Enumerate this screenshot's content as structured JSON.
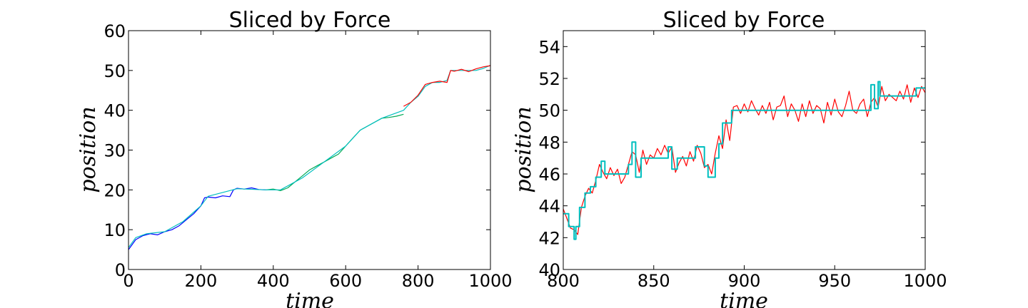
{
  "chart_data": [
    {
      "type": "line",
      "title": "Sliced by Force",
      "xlabel": "time",
      "ylabel": "position",
      "xlim": [
        0,
        1000
      ],
      "ylim": [
        0,
        60
      ],
      "xticks": [
        0,
        200,
        400,
        600,
        800,
        1000
      ],
      "yticks": [
        0,
        10,
        20,
        30,
        40,
        50,
        60
      ],
      "grid": false,
      "series": [
        {
          "color": "#0000ff",
          "x": [
            0,
            20,
            40,
            60,
            80,
            100,
            120,
            140,
            160,
            180,
            200,
            210,
            220,
            240,
            260,
            280,
            290,
            300,
            320,
            340,
            360,
            380
          ],
          "y": [
            5,
            7.5,
            8.5,
            9,
            8.7,
            9.5,
            10,
            11,
            12.5,
            14,
            16,
            18,
            18.2,
            18,
            18.5,
            18.3,
            20,
            20.4,
            20.2,
            20.5,
            20.1,
            20
          ]
        },
        {
          "color": "#00aa55",
          "x": [
            380,
            400,
            420,
            440,
            460,
            480,
            500,
            520,
            540,
            560,
            580,
            600,
            620,
            640,
            660,
            680,
            700,
            720,
            740,
            760
          ],
          "y": [
            20,
            20.2,
            19.8,
            20.5,
            22,
            23.5,
            25,
            26,
            27,
            28,
            29,
            31,
            33,
            35,
            36,
            37,
            38,
            38.2,
            38.5,
            39
          ]
        },
        {
          "color": "#00bfbf",
          "x": [
            0,
            20,
            50,
            100,
            150,
            200,
            220,
            300,
            380,
            420,
            480,
            540,
            600,
            640,
            700,
            760,
            780,
            800,
            820,
            840,
            860,
            880,
            890,
            900,
            920,
            940,
            960,
            980,
            1000
          ],
          "y": [
            5.5,
            8,
            9,
            9.5,
            12,
            16,
            18.4,
            20.3,
            20,
            20,
            23,
            27,
            31,
            35,
            38,
            40,
            42,
            43.5,
            46,
            47,
            47,
            47.5,
            50,
            50,
            50,
            50,
            50,
            50.5,
            51.3
          ]
        },
        {
          "color": "#ff0000",
          "x": [
            760,
            780,
            800,
            820,
            840,
            860,
            880,
            890,
            900,
            920,
            940,
            960,
            980,
            1000
          ],
          "y": [
            41,
            42,
            43.8,
            46.5,
            47,
            47.3,
            47,
            50,
            49.8,
            50.3,
            49.7,
            50.4,
            50.9,
            51.2
          ]
        }
      ]
    },
    {
      "type": "line",
      "title": "Sliced by Force",
      "xlabel": "time",
      "ylabel": "position",
      "xlim": [
        800,
        1000
      ],
      "ylim": [
        40,
        55
      ],
      "xticks": [
        800,
        850,
        900,
        950,
        1000
      ],
      "yticks": [
        40,
        42,
        44,
        46,
        48,
        50,
        52,
        54
      ],
      "grid": false,
      "series": [
        {
          "color": "#ff0000",
          "x": [
            800,
            802,
            804,
            806,
            808,
            810,
            812,
            814,
            816,
            818,
            820,
            822,
            824,
            826,
            828,
            830,
            832,
            834,
            836,
            838,
            840,
            842,
            844,
            846,
            848,
            850,
            852,
            854,
            856,
            858,
            860,
            862,
            864,
            866,
            868,
            870,
            872,
            874,
            876,
            878,
            880,
            882,
            884,
            886,
            888,
            890,
            892,
            894,
            896,
            898,
            900,
            902,
            904,
            906,
            908,
            910,
            912,
            914,
            916,
            918,
            920,
            922,
            924,
            926,
            928,
            930,
            932,
            934,
            936,
            938,
            940,
            942,
            944,
            946,
            948,
            950,
            952,
            954,
            956,
            958,
            960,
            962,
            964,
            966,
            968,
            970,
            972,
            974,
            976,
            978,
            980,
            982,
            984,
            986,
            988,
            990,
            992,
            994,
            996,
            998,
            1000
          ],
          "y": [
            43.8,
            43.2,
            42.6,
            42.5,
            42.2,
            43.9,
            44.6,
            45.1,
            44.8,
            45.6,
            46.6,
            46.1,
            45.7,
            46.4,
            45.9,
            46.3,
            45.4,
            45.8,
            46.6,
            47.4,
            47.2,
            46.1,
            47.5,
            46.6,
            47.2,
            47.0,
            47.6,
            47.2,
            47.8,
            47.3,
            47.7,
            46.1,
            46.7,
            47.1,
            46.5,
            47.4,
            46.8,
            47.8,
            47.3,
            46.4,
            46.6,
            46.0,
            47.3,
            48.4,
            47.6,
            49.4,
            48.1,
            50.2,
            50.3,
            49.8,
            50.4,
            49.9,
            50.6,
            50.1,
            49.7,
            50.3,
            49.8,
            50.5,
            49.4,
            50.2,
            50.3,
            50.9,
            49.6,
            50.4,
            50.0,
            49.3,
            50.4,
            49.6,
            50.6,
            49.8,
            50.3,
            50.1,
            49.2,
            50.5,
            49.7,
            50.7,
            49.9,
            49.6,
            50.3,
            51.2,
            50.0,
            49.8,
            50.4,
            50.7,
            49.6,
            50.5,
            50.8,
            50.2,
            51.5,
            50.6,
            51.0,
            50.8,
            50.6,
            51.2,
            50.7,
            51.6,
            50.5,
            51.4,
            50.8,
            51.5,
            51.1
          ]
        },
        {
          "color": "#00bfbf",
          "x": [
            800,
            803,
            803,
            806,
            806,
            807,
            807,
            809,
            809,
            812,
            812,
            815,
            815,
            818,
            818,
            821,
            821,
            823,
            823,
            830,
            830,
            836,
            836,
            838,
            838,
            840,
            840,
            843,
            843,
            850,
            850,
            858,
            858,
            860,
            860,
            863,
            863,
            870,
            870,
            873,
            873,
            878,
            878,
            880,
            880,
            884,
            884,
            886,
            886,
            888,
            888,
            893,
            893,
            896,
            896,
            940,
            940,
            970,
            970,
            972,
            972,
            974,
            974,
            975,
            975,
            990,
            990,
            995,
            995,
            1000
          ],
          "y": [
            43.5,
            43.5,
            42.7,
            42.7,
            41.9,
            41.9,
            42.7,
            42.7,
            43.9,
            43.9,
            44.8,
            44.8,
            45.2,
            45.2,
            45.8,
            45.8,
            46.8,
            46.8,
            46.0,
            46.0,
            46.0,
            46.0,
            46.6,
            46.6,
            48.0,
            48.0,
            45.8,
            45.8,
            47.0,
            47.0,
            47.0,
            47.0,
            47.7,
            47.7,
            46.3,
            46.3,
            47.0,
            47.0,
            47.0,
            47.0,
            47.7,
            47.7,
            46.5,
            46.5,
            45.8,
            45.8,
            47.0,
            47.0,
            47.9,
            47.9,
            49.2,
            49.2,
            50.0,
            50.0,
            50.0,
            50.0,
            50.0,
            50.0,
            51.6,
            51.6,
            50.1,
            50.1,
            51.8,
            51.8,
            50.9,
            50.9,
            50.9,
            50.9,
            51.4,
            51.4
          ]
        }
      ]
    }
  ]
}
